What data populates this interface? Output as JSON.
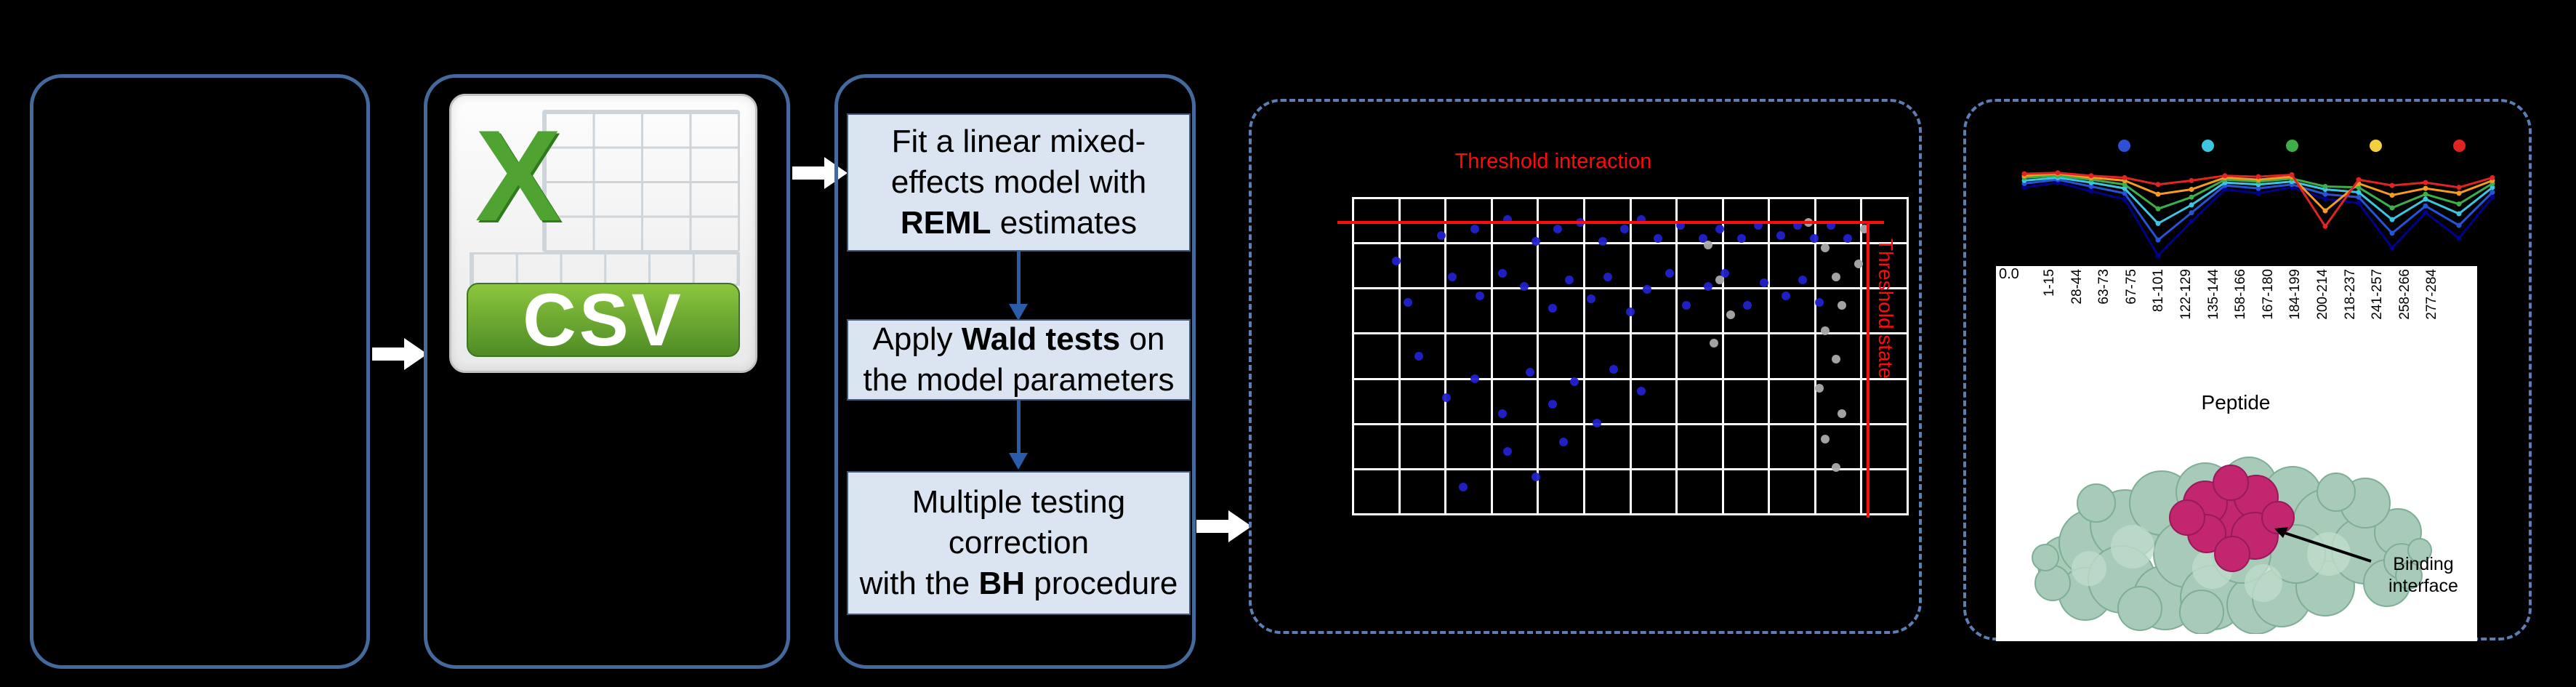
{
  "figure": {
    "background": "#000000",
    "accent_border": "#44699D",
    "dashed_border": "#5B7FB5"
  },
  "csv_icon": {
    "letter": "X",
    "label": "CSV"
  },
  "steps": [
    {
      "pre": "Fit a linear mixed-\neffects model with\n",
      "bold": "REML",
      "post": " estimates"
    },
    {
      "pre": "Apply ",
      "bold": "Wald tests",
      "post": " on\nthe model parameters"
    },
    {
      "pre": "Multiple testing\ncorrection\nwith the ",
      "bold": "BH",
      "post": " procedure"
    }
  ],
  "scatter": {
    "type": "scatter",
    "title": "Threshold interaction",
    "side_label": "Threshold state",
    "threshold_color": "#FF0B0B",
    "grid": {
      "cols": 12,
      "rows": 7
    },
    "point_colors": {
      "significant": "#2121CE",
      "not_significant": "#ABABAB"
    },
    "points_significant": [
      [
        0.16,
        0.12
      ],
      [
        0.22,
        0.1
      ],
      [
        0.28,
        0.07
      ],
      [
        0.33,
        0.14
      ],
      [
        0.37,
        0.1
      ],
      [
        0.41,
        0.08
      ],
      [
        0.45,
        0.14
      ],
      [
        0.49,
        0.1
      ],
      [
        0.52,
        0.07
      ],
      [
        0.55,
        0.13
      ],
      [
        0.59,
        0.09
      ],
      [
        0.63,
        0.13
      ],
      [
        0.66,
        0.1
      ],
      [
        0.7,
        0.13
      ],
      [
        0.73,
        0.09
      ],
      [
        0.77,
        0.12
      ],
      [
        0.8,
        0.09
      ],
      [
        0.83,
        0.13
      ],
      [
        0.86,
        0.09
      ],
      [
        0.89,
        0.13
      ],
      [
        0.18,
        0.25
      ],
      [
        0.23,
        0.31
      ],
      [
        0.27,
        0.24
      ],
      [
        0.31,
        0.28
      ],
      [
        0.36,
        0.35
      ],
      [
        0.39,
        0.26
      ],
      [
        0.43,
        0.32
      ],
      [
        0.46,
        0.25
      ],
      [
        0.5,
        0.36
      ],
      [
        0.53,
        0.29
      ],
      [
        0.57,
        0.24
      ],
      [
        0.6,
        0.34
      ],
      [
        0.64,
        0.28
      ],
      [
        0.67,
        0.24
      ],
      [
        0.71,
        0.34
      ],
      [
        0.74,
        0.27
      ],
      [
        0.78,
        0.31
      ],
      [
        0.81,
        0.26
      ],
      [
        0.84,
        0.33
      ],
      [
        0.12,
        0.5
      ],
      [
        0.17,
        0.63
      ],
      [
        0.22,
        0.57
      ],
      [
        0.27,
        0.68
      ],
      [
        0.32,
        0.55
      ],
      [
        0.36,
        0.65
      ],
      [
        0.4,
        0.58
      ],
      [
        0.44,
        0.71
      ],
      [
        0.28,
        0.8
      ],
      [
        0.33,
        0.88
      ],
      [
        0.38,
        0.77
      ],
      [
        0.2,
        0.91
      ],
      [
        0.47,
        0.54
      ],
      [
        0.52,
        0.61
      ],
      [
        0.1,
        0.33
      ],
      [
        0.08,
        0.2
      ]
    ],
    "points_not_significant": [
      [
        0.64,
        0.15
      ],
      [
        0.66,
        0.26
      ],
      [
        0.68,
        0.37
      ],
      [
        0.65,
        0.46
      ],
      [
        0.82,
        0.08
      ],
      [
        0.85,
        0.16
      ],
      [
        0.87,
        0.25
      ],
      [
        0.88,
        0.34
      ],
      [
        0.85,
        0.42
      ],
      [
        0.87,
        0.51
      ],
      [
        0.84,
        0.6
      ],
      [
        0.88,
        0.68
      ],
      [
        0.85,
        0.76
      ],
      [
        0.87,
        0.85
      ],
      [
        0.91,
        0.21
      ],
      [
        0.92,
        0.1
      ]
    ]
  },
  "uptake_chart": {
    "type": "line",
    "y_tick": "0.0",
    "xlabel": "Peptide",
    "categories": [
      "1-15",
      "28-44",
      "63-73",
      "67-75",
      "81-101",
      "122-129",
      "135-144",
      "158-166",
      "167-180",
      "184-199",
      "200-214",
      "218-237",
      "241-257",
      "258-266",
      "277-284"
    ],
    "legend_colors": [
      "#2E4FD6",
      "#3EC6E0",
      "#3DAE49",
      "#F3D03E",
      "#E02424"
    ],
    "series": [
      {
        "name": "navy",
        "color": "#00008B",
        "values": [
          0.2,
          0.15,
          0.24,
          0.32,
          0.9,
          0.55,
          0.22,
          0.26,
          0.2,
          0.32,
          0.36,
          0.82,
          0.46,
          0.72,
          0.3
        ]
      },
      {
        "name": "blue",
        "color": "#2753D8",
        "values": [
          0.16,
          0.12,
          0.19,
          0.26,
          0.74,
          0.46,
          0.18,
          0.21,
          0.17,
          0.27,
          0.3,
          0.67,
          0.39,
          0.59,
          0.25
        ]
      },
      {
        "name": "cyan",
        "color": "#3EC6E0",
        "values": [
          0.13,
          0.1,
          0.15,
          0.21,
          0.57,
          0.38,
          0.15,
          0.17,
          0.14,
          0.22,
          0.25,
          0.53,
          0.32,
          0.47,
          0.2
        ]
      },
      {
        "name": "green",
        "color": "#3DAE49",
        "values": [
          0.1,
          0.08,
          0.12,
          0.17,
          0.42,
          0.3,
          0.12,
          0.14,
          0.11,
          0.19,
          0.2,
          0.41,
          0.27,
          0.37,
          0.16
        ]
      },
      {
        "name": "orange",
        "color": "#F59B23",
        "values": [
          0.08,
          0.06,
          0.1,
          0.13,
          0.27,
          0.22,
          0.1,
          0.12,
          0.09,
          0.44,
          0.16,
          0.28,
          0.21,
          0.26,
          0.13
        ]
      },
      {
        "name": "red",
        "color": "#E02424",
        "values": [
          0.06,
          0.05,
          0.08,
          0.1,
          0.17,
          0.13,
          0.08,
          0.09,
          0.07,
          0.6,
          0.12,
          0.18,
          0.15,
          0.2,
          0.1
        ]
      }
    ]
  },
  "protein": {
    "annotation": "Binding\ninterface"
  }
}
